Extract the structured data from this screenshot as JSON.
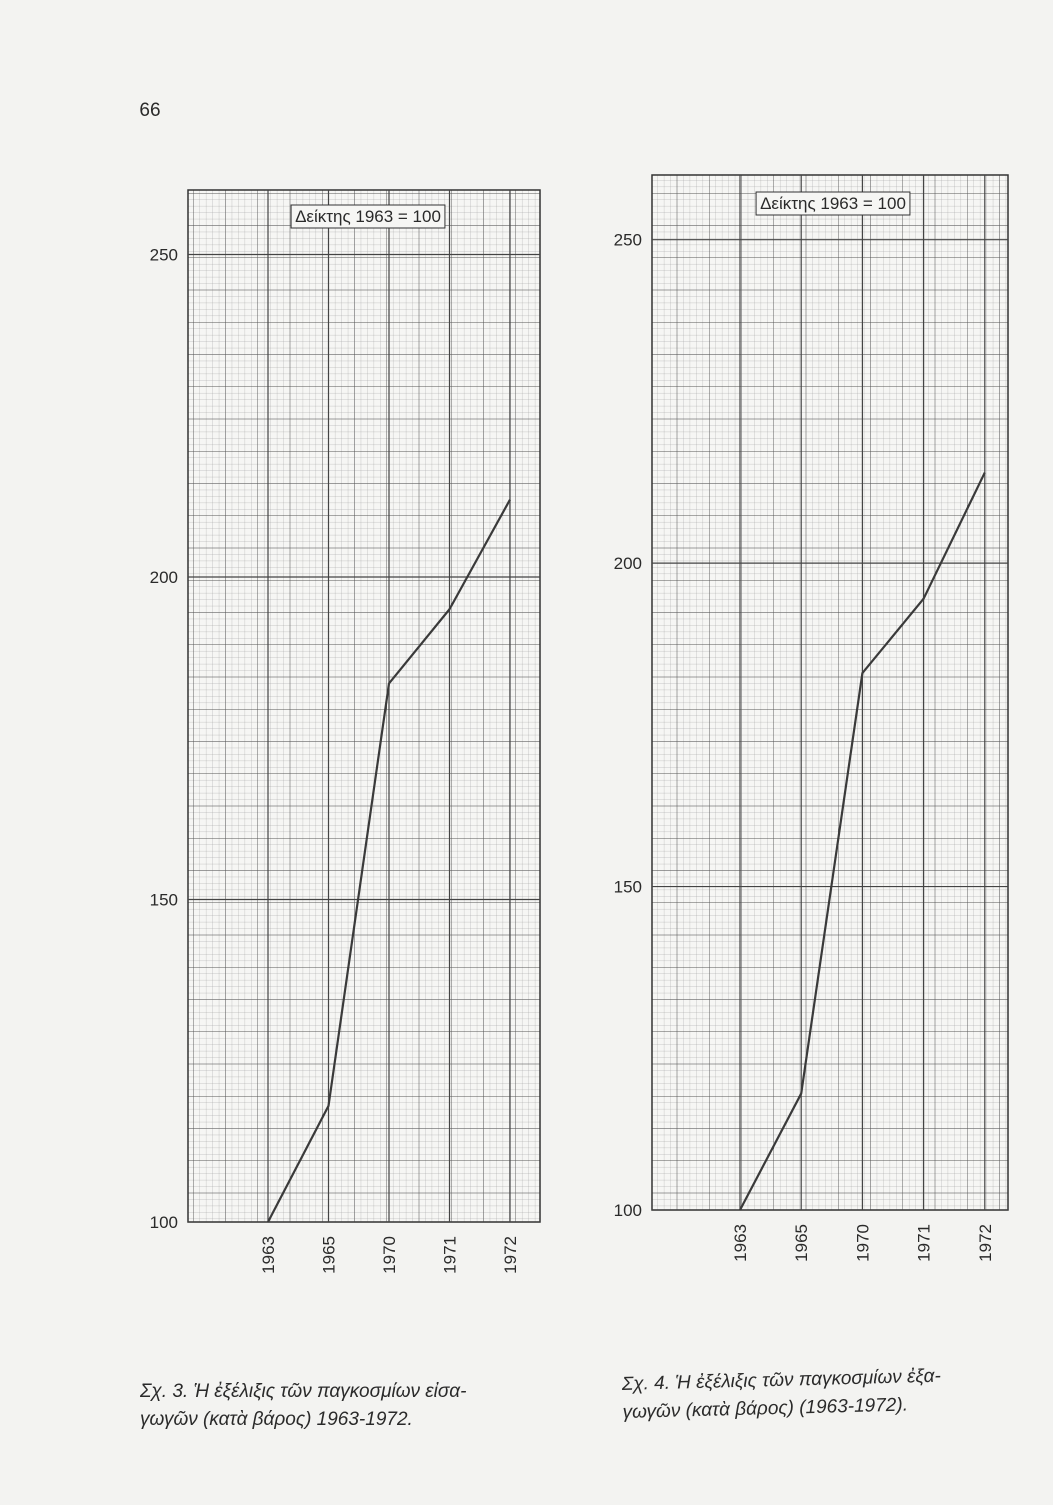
{
  "page_number": "66",
  "chart_data": [
    {
      "type": "line",
      "annotation": "Δείκτης 1963 = 100",
      "categories": [
        "1963",
        "1965",
        "1970",
        "1971",
        "1972"
      ],
      "values": [
        100,
        118,
        183.5,
        195,
        212
      ],
      "color": "#3a3a3a",
      "ylim": [
        100,
        260
      ],
      "yticks": [
        100,
        150,
        200,
        250
      ],
      "grid": true,
      "caption": [
        "Σχ. 3. Ἡ ἐξέλιξις τῶν παγκοσμίων εἰσα-",
        "γωγῶν (κατὰ βάρος) 1963-1972."
      ]
    },
    {
      "type": "line",
      "annotation": "Δείκτης 1963 = 100",
      "categories": [
        "1963",
        "1965",
        "1970",
        "1971",
        "1972"
      ],
      "values": [
        100,
        118,
        183,
        194.5,
        214
      ],
      "color": "#3a3a3a",
      "ylim": [
        100,
        260
      ],
      "yticks": [
        100,
        150,
        200,
        250
      ],
      "grid": true,
      "caption": [
        "Σχ. 4. Ἡ ἐξέλιξις τῶν παγκοσμίων ἐξα-",
        "γωγῶν (κατὰ βάρος) (1963-1972)."
      ]
    }
  ]
}
